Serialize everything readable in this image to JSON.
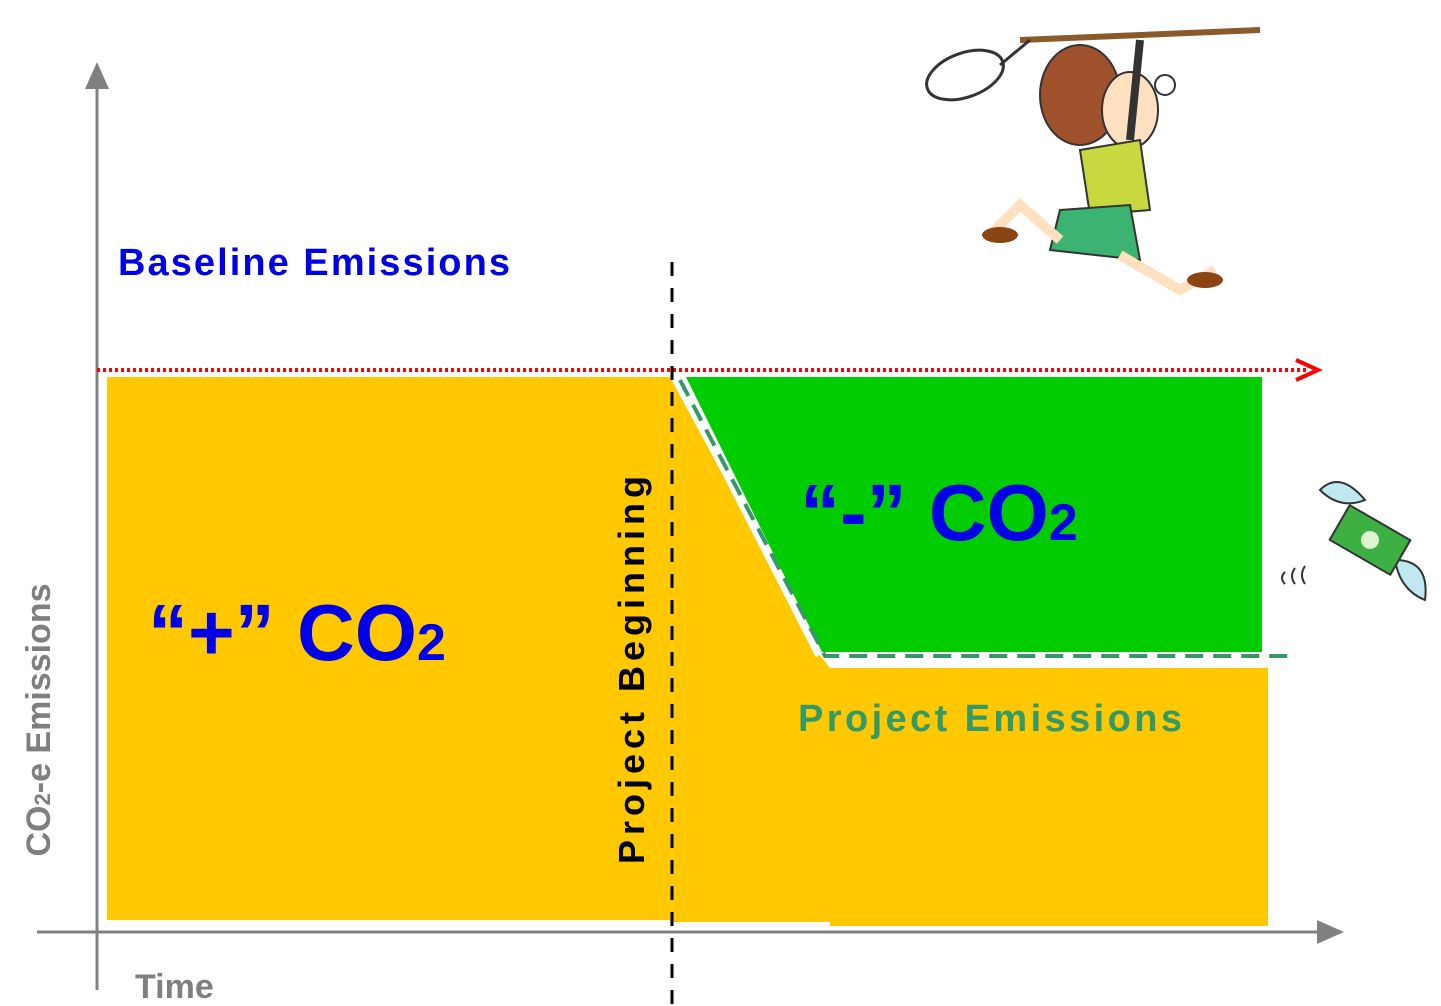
{
  "baseline_label": "Baseline Emissions",
  "positive_label": {
    "main": "“+” CO",
    "sub": "2"
  },
  "negative_label": {
    "main": "“-” CO",
    "sub": "2"
  },
  "project_emissions_label": "Project Emissions",
  "project_beginning_label": "Project Beginning",
  "y_axis_label": {
    "main": "CO",
    "sub": "2",
    "rest": "-e Emissions"
  },
  "x_axis_label": "Time"
}
